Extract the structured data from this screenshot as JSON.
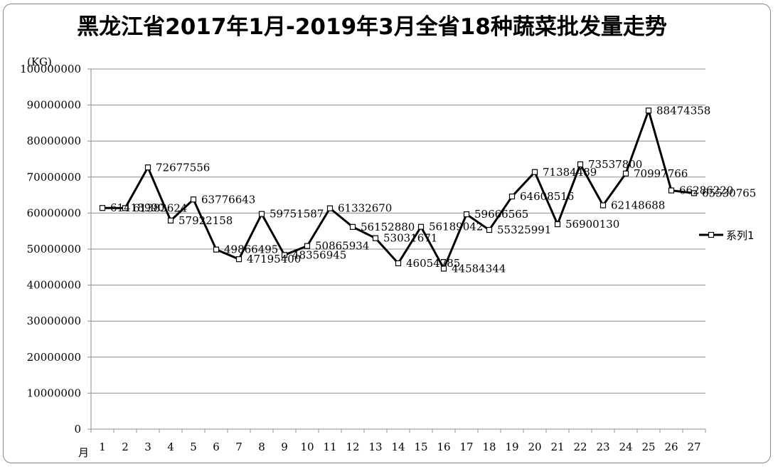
{
  "chart_data": {
    "type": "line",
    "title": "黑龙江省2017年1月-2019年3月全省18种蔬菜批发量走势",
    "ylabel": "(KG)",
    "xlabel": "月",
    "ylim": [
      0,
      100000000
    ],
    "y_ticks": [
      "0",
      "10000000",
      "20000000",
      "30000000",
      "40000000",
      "50000000",
      "60000000",
      "70000000",
      "80000000",
      "90000000",
      "100000000"
    ],
    "categories": [
      "1",
      "2",
      "3",
      "4",
      "5",
      "6",
      "7",
      "8",
      "9",
      "10",
      "11",
      "12",
      "13",
      "14",
      "15",
      "16",
      "17",
      "18",
      "19",
      "20",
      "21",
      "22",
      "23",
      "24",
      "25",
      "26",
      "27"
    ],
    "grid": true,
    "legend": "right",
    "series": [
      {
        "name": "系列1",
        "color": "#000000",
        "values": [
          61418990,
          61383624,
          72677556,
          57922158,
          63776643,
          49866495,
          47195400,
          59751587,
          48356945,
          50865934,
          61332670,
          56152880,
          53031671,
          46054785,
          56189042,
          44584344,
          59666565,
          55325991,
          64608516,
          71384489,
          56900130,
          73537800,
          62148688,
          70997766,
          88474358,
          66286220,
          65530765
        ],
        "labels": [
          "61418990",
          "61383624",
          "72677556",
          "57922158",
          "63776643",
          "49866495",
          "47195400",
          "59751587",
          "48356945",
          "50865934",
          "61332670",
          "56152880",
          "53031671",
          "46054785",
          "56189042",
          "44584344",
          "59666565",
          "55325991",
          "64608516",
          "71384489",
          "56900130",
          "73537800",
          "62148688",
          "70997766",
          "88474358",
          "66286220",
          "65530765"
        ]
      }
    ]
  }
}
